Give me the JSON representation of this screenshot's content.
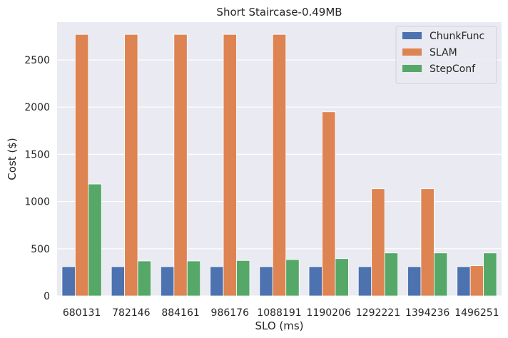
{
  "chart_data": {
    "type": "bar",
    "title": "Short Staircase-0.49MB",
    "xlabel": "SLO (ms)",
    "ylabel": "Cost ($)",
    "ylim": [
      0,
      2900
    ],
    "yticks": [
      0,
      500,
      1000,
      1500,
      2000,
      2500
    ],
    "grid": true,
    "legend_position": "top-right",
    "categories": [
      "680131",
      "782146",
      "884161",
      "986176",
      "1088191",
      "1190206",
      "1292221",
      "1394236",
      "1496251"
    ],
    "series": [
      {
        "name": "ChunkFunc",
        "color": "#4c72b0",
        "values": [
          310,
          310,
          310,
          310,
          310,
          310,
          310,
          310,
          310
        ]
      },
      {
        "name": "SLAM",
        "color": "#dd8452",
        "values": [
          2770,
          2770,
          2770,
          2770,
          2770,
          1950,
          1135,
          1135,
          320
        ]
      },
      {
        "name": "StepConf",
        "color": "#55a868",
        "values": [
          1185,
          370,
          370,
          375,
          385,
          395,
          455,
          455,
          455
        ]
      }
    ]
  }
}
